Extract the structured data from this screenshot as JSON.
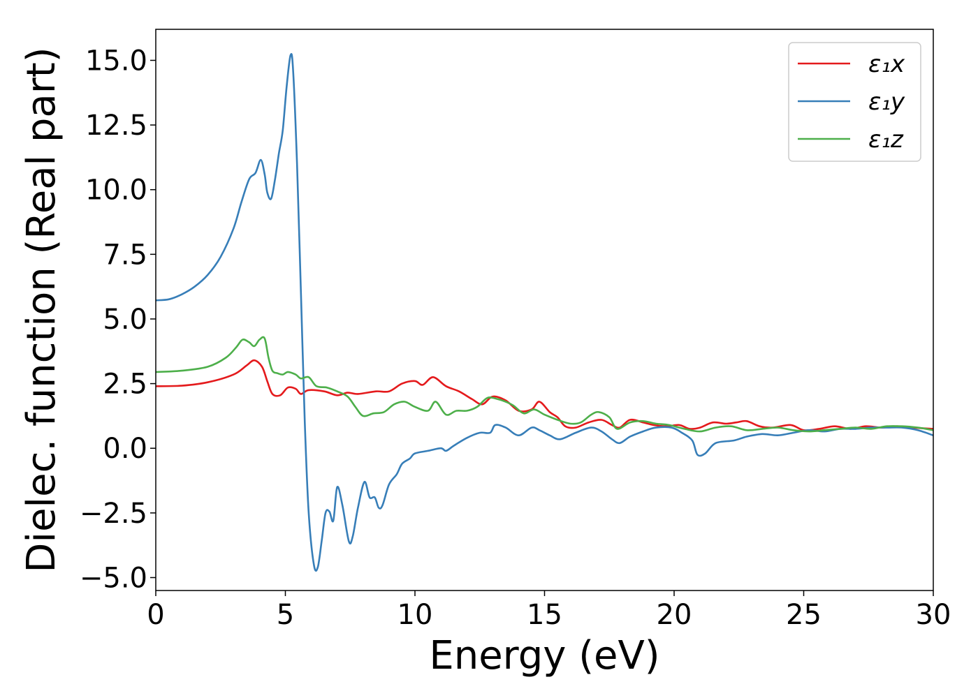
{
  "chart_data": {
    "type": "line",
    "title": "",
    "xlabel": "Energy (eV)",
    "ylabel": "Dielec. function (Real part)",
    "xlim": [
      0,
      30
    ],
    "ylim": [
      -5.5,
      16.2
    ],
    "xticks": [
      0,
      5,
      10,
      15,
      20,
      25,
      30
    ],
    "xtick_labels": [
      "0",
      "5",
      "10",
      "15",
      "20",
      "25",
      "30"
    ],
    "yticks": [
      -5.0,
      -2.5,
      0.0,
      2.5,
      5.0,
      7.5,
      10.0,
      12.5,
      15.0
    ],
    "ytick_labels": [
      "−5.0",
      "−2.5",
      "0.0",
      "2.5",
      "5.0",
      "7.5",
      "10.0",
      "12.5",
      "15.0"
    ],
    "grid": false,
    "legend_position": "top-right",
    "series": [
      {
        "name": "ε₁x",
        "color": "#e41a1c",
        "points": [
          [
            0,
            2.4
          ],
          [
            1,
            2.42
          ],
          [
            2,
            2.55
          ],
          [
            3,
            2.85
          ],
          [
            3.5,
            3.2
          ],
          [
            3.8,
            3.4
          ],
          [
            4.1,
            3.15
          ],
          [
            4.3,
            2.6
          ],
          [
            4.5,
            2.1
          ],
          [
            4.8,
            2.05
          ],
          [
            5.1,
            2.35
          ],
          [
            5.4,
            2.3
          ],
          [
            5.6,
            2.1
          ],
          [
            5.9,
            2.25
          ],
          [
            6.5,
            2.2
          ],
          [
            7,
            2.05
          ],
          [
            7.4,
            2.15
          ],
          [
            7.8,
            2.1
          ],
          [
            8.5,
            2.2
          ],
          [
            9,
            2.2
          ],
          [
            9.5,
            2.5
          ],
          [
            10,
            2.6
          ],
          [
            10.3,
            2.45
          ],
          [
            10.7,
            2.75
          ],
          [
            11.2,
            2.4
          ],
          [
            11.7,
            2.2
          ],
          [
            12.2,
            1.9
          ],
          [
            12.6,
            1.7
          ],
          [
            13,
            2.0
          ],
          [
            13.5,
            1.85
          ],
          [
            14,
            1.45
          ],
          [
            14.5,
            1.5
          ],
          [
            14.8,
            1.8
          ],
          [
            15.2,
            1.4
          ],
          [
            15.5,
            1.2
          ],
          [
            15.8,
            0.85
          ],
          [
            16.2,
            0.8
          ],
          [
            16.7,
            1.0
          ],
          [
            17.2,
            1.1
          ],
          [
            17.6,
            0.9
          ],
          [
            17.9,
            0.8
          ],
          [
            18.3,
            1.1
          ],
          [
            18.8,
            1.0
          ],
          [
            19.2,
            0.9
          ],
          [
            19.7,
            0.85
          ],
          [
            20.2,
            0.9
          ],
          [
            20.6,
            0.75
          ],
          [
            21,
            0.8
          ],
          [
            21.5,
            1.0
          ],
          [
            22,
            0.95
          ],
          [
            22.4,
            1.0
          ],
          [
            22.8,
            1.05
          ],
          [
            23.3,
            0.85
          ],
          [
            23.8,
            0.8
          ],
          [
            24.5,
            0.9
          ],
          [
            25,
            0.7
          ],
          [
            25.6,
            0.75
          ],
          [
            26.2,
            0.85
          ],
          [
            26.8,
            0.75
          ],
          [
            27.4,
            0.85
          ],
          [
            28,
            0.8
          ],
          [
            28.6,
            0.85
          ],
          [
            29.2,
            0.8
          ],
          [
            30,
            0.75
          ]
        ]
      },
      {
        "name": "ε₁y",
        "color": "#377eb8",
        "points": [
          [
            0,
            5.72
          ],
          [
            0.5,
            5.76
          ],
          [
            1,
            5.95
          ],
          [
            1.5,
            6.25
          ],
          [
            2,
            6.7
          ],
          [
            2.5,
            7.4
          ],
          [
            3,
            8.5
          ],
          [
            3.3,
            9.5
          ],
          [
            3.6,
            10.4
          ],
          [
            3.85,
            10.65
          ],
          [
            4.05,
            11.15
          ],
          [
            4.2,
            10.6
          ],
          [
            4.3,
            9.9
          ],
          [
            4.45,
            9.65
          ],
          [
            4.6,
            10.4
          ],
          [
            4.75,
            11.4
          ],
          [
            4.9,
            12.3
          ],
          [
            5.05,
            14.0
          ],
          [
            5.2,
            15.2
          ],
          [
            5.3,
            14.6
          ],
          [
            5.45,
            11.0
          ],
          [
            5.6,
            6.0
          ],
          [
            5.75,
            1.0
          ],
          [
            5.9,
            -2.5
          ],
          [
            6.1,
            -4.5
          ],
          [
            6.25,
            -4.6
          ],
          [
            6.4,
            -3.6
          ],
          [
            6.55,
            -2.5
          ],
          [
            6.7,
            -2.45
          ],
          [
            6.85,
            -2.8
          ],
          [
            7.0,
            -1.5
          ],
          [
            7.2,
            -2.2
          ],
          [
            7.45,
            -3.6
          ],
          [
            7.6,
            -3.4
          ],
          [
            7.8,
            -2.3
          ],
          [
            8.05,
            -1.3
          ],
          [
            8.25,
            -1.9
          ],
          [
            8.45,
            -1.9
          ],
          [
            8.6,
            -2.3
          ],
          [
            8.75,
            -2.2
          ],
          [
            9.0,
            -1.4
          ],
          [
            9.3,
            -1.0
          ],
          [
            9.5,
            -0.6
          ],
          [
            9.8,
            -0.4
          ],
          [
            10,
            -0.2
          ],
          [
            10.5,
            -0.1
          ],
          [
            11,
            0.0
          ],
          [
            11.2,
            -0.1
          ],
          [
            11.5,
            0.1
          ],
          [
            12,
            0.4
          ],
          [
            12.5,
            0.6
          ],
          [
            12.9,
            0.6
          ],
          [
            13.1,
            0.9
          ],
          [
            13.5,
            0.8
          ],
          [
            14,
            0.5
          ],
          [
            14.5,
            0.8
          ],
          [
            14.8,
            0.7
          ],
          [
            15.2,
            0.5
          ],
          [
            15.6,
            0.35
          ],
          [
            16.2,
            0.6
          ],
          [
            16.8,
            0.8
          ],
          [
            17.2,
            0.65
          ],
          [
            17.6,
            0.35
          ],
          [
            17.9,
            0.2
          ],
          [
            18.3,
            0.45
          ],
          [
            18.8,
            0.65
          ],
          [
            19.3,
            0.8
          ],
          [
            19.9,
            0.8
          ],
          [
            20.3,
            0.6
          ],
          [
            20.7,
            0.3
          ],
          [
            20.9,
            -0.25
          ],
          [
            21.2,
            -0.2
          ],
          [
            21.6,
            0.2
          ],
          [
            22.3,
            0.3
          ],
          [
            22.8,
            0.45
          ],
          [
            23.4,
            0.55
          ],
          [
            24,
            0.5
          ],
          [
            24.6,
            0.6
          ],
          [
            25.2,
            0.7
          ],
          [
            25.8,
            0.65
          ],
          [
            26.4,
            0.75
          ],
          [
            27,
            0.75
          ],
          [
            27.6,
            0.8
          ],
          [
            28.2,
            0.8
          ],
          [
            28.8,
            0.8
          ],
          [
            29.4,
            0.7
          ],
          [
            30,
            0.5
          ]
        ]
      },
      {
        "name": "ε₁z",
        "color": "#4daf4a",
        "points": [
          [
            0,
            2.95
          ],
          [
            1,
            3.0
          ],
          [
            2,
            3.15
          ],
          [
            2.7,
            3.5
          ],
          [
            3.1,
            3.9
          ],
          [
            3.35,
            4.2
          ],
          [
            3.6,
            4.1
          ],
          [
            3.8,
            3.95
          ],
          [
            4.0,
            4.2
          ],
          [
            4.2,
            4.25
          ],
          [
            4.35,
            3.5
          ],
          [
            4.5,
            3.0
          ],
          [
            4.7,
            2.9
          ],
          [
            4.9,
            2.85
          ],
          [
            5.1,
            2.95
          ],
          [
            5.4,
            2.85
          ],
          [
            5.6,
            2.7
          ],
          [
            5.9,
            2.75
          ],
          [
            6.2,
            2.4
          ],
          [
            6.6,
            2.35
          ],
          [
            7.0,
            2.2
          ],
          [
            7.4,
            2.0
          ],
          [
            7.7,
            1.6
          ],
          [
            8.0,
            1.25
          ],
          [
            8.4,
            1.35
          ],
          [
            8.8,
            1.4
          ],
          [
            9.2,
            1.7
          ],
          [
            9.6,
            1.8
          ],
          [
            10,
            1.6
          ],
          [
            10.5,
            1.45
          ],
          [
            10.8,
            1.8
          ],
          [
            11.2,
            1.3
          ],
          [
            11.6,
            1.45
          ],
          [
            12,
            1.45
          ],
          [
            12.4,
            1.6
          ],
          [
            12.8,
            1.95
          ],
          [
            13.2,
            1.9
          ],
          [
            13.5,
            1.8
          ],
          [
            13.8,
            1.65
          ],
          [
            14.2,
            1.35
          ],
          [
            14.6,
            1.5
          ],
          [
            15,
            1.3
          ],
          [
            15.5,
            1.1
          ],
          [
            16,
            0.95
          ],
          [
            16.4,
            1.0
          ],
          [
            16.8,
            1.3
          ],
          [
            17.1,
            1.4
          ],
          [
            17.5,
            1.2
          ],
          [
            17.8,
            0.75
          ],
          [
            18.3,
            1.0
          ],
          [
            18.8,
            1.05
          ],
          [
            19.3,
            0.95
          ],
          [
            19.8,
            0.9
          ],
          [
            20.4,
            0.75
          ],
          [
            21,
            0.65
          ],
          [
            21.6,
            0.8
          ],
          [
            22.2,
            0.85
          ],
          [
            22.8,
            0.7
          ],
          [
            23.4,
            0.75
          ],
          [
            24,
            0.8
          ],
          [
            24.6,
            0.7
          ],
          [
            25.2,
            0.65
          ],
          [
            25.8,
            0.7
          ],
          [
            26.4,
            0.75
          ],
          [
            27,
            0.8
          ],
          [
            27.6,
            0.75
          ],
          [
            28.2,
            0.85
          ],
          [
            28.8,
            0.85
          ],
          [
            29.4,
            0.8
          ],
          [
            30,
            0.7
          ]
        ]
      }
    ]
  }
}
